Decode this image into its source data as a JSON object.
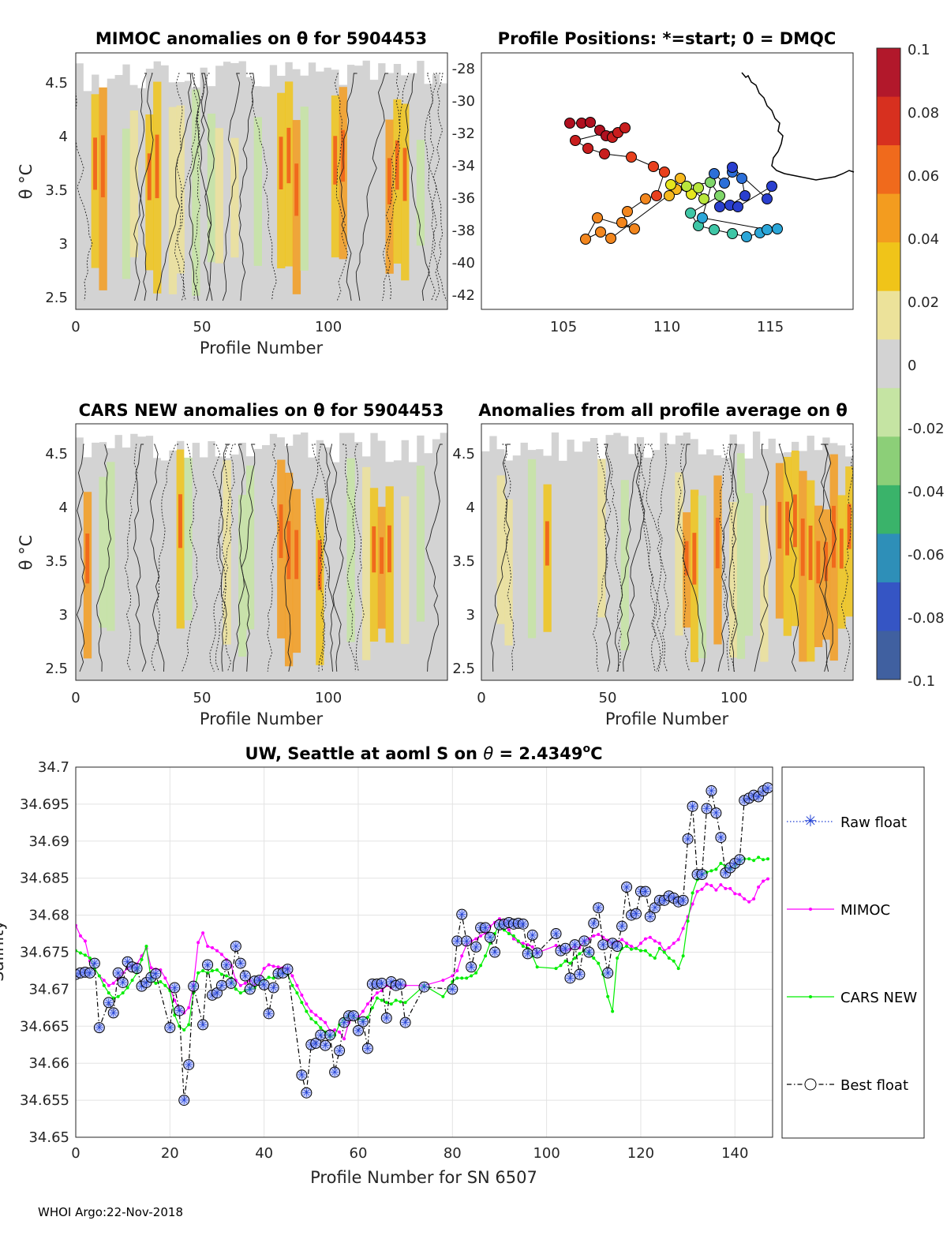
{
  "panels": {
    "mimoc": {
      "title": "MIMOC anomalies on θ  for 5904453",
      "xlabel": "Profile Number",
      "ylabel": "θ °C",
      "xticks": [
        "0",
        "50",
        "100"
      ],
      "yticks": [
        "2.5",
        "3",
        "3.5",
        "4",
        "4.5"
      ]
    },
    "positions": {
      "title": "Profile Positions: *=start; 0 = DMQC",
      "xticks": [
        "105",
        "110",
        "115"
      ],
      "yticks": [
        "-28",
        "-30",
        "-32",
        "-34",
        "-36",
        "-38",
        "-40",
        "-42"
      ]
    },
    "cars": {
      "title": "CARS NEW anomalies on θ for 5904453",
      "xlabel": "Profile Number",
      "ylabel": "θ °C",
      "xticks": [
        "0",
        "50",
        "100"
      ],
      "yticks": [
        "2.5",
        "3",
        "3.5",
        "4",
        "4.5"
      ]
    },
    "allavg": {
      "title": "Anomalies from all profile average on θ",
      "xlabel": "Profile Number",
      "xticks": [
        "0",
        "50",
        "100"
      ],
      "yticks": [
        "2.5",
        "3",
        "3.5",
        "4",
        "4.5"
      ]
    }
  },
  "colorbar": {
    "ticks": [
      "0.1",
      "0.08",
      "0.06",
      "0.04",
      "0.02",
      "0",
      "-0.02",
      "-0.04",
      "-0.06",
      "-0.08",
      "-0.1"
    ],
    "colors": [
      "#b2182b",
      "#d7301f",
      "#f06a1c",
      "#f39c1f",
      "#f0c419",
      "#ece29a",
      "#d3d3d3",
      "#c5e4a3",
      "#8ccf78",
      "#3ab36a",
      "#2e8fb8",
      "#3555c4",
      "#4060a0"
    ]
  },
  "footer": "WHOI Argo:22-Nov-2018",
  "chart_data": {
    "type": "line",
    "title_prefix": "UW, Seattle at aoml S on ",
    "title_theta": "θ",
    "title_eq": " = 2.4349",
    "title_sup": "o",
    "title_unit": "C",
    "xlabel": "Profile Number for SN 6507",
    "ylabel": "Salinity",
    "xlim": [
      0,
      148
    ],
    "ylim": [
      34.65,
      34.7
    ],
    "xticks": [
      "0",
      "20",
      "40",
      "60",
      "80",
      "100",
      "120",
      "140"
    ],
    "yticks": [
      "34.65",
      "34.655",
      "34.66",
      "34.665",
      "34.67",
      "34.675",
      "34.68",
      "34.685",
      "34.69",
      "34.695",
      "34.7"
    ],
    "grid": true,
    "legend_position": "outside-right",
    "series": [
      {
        "name": "Raw float",
        "color": "#1f3fd4"
      },
      {
        "name": "MIMOC",
        "color": "#ff00ff",
        "x": [
          0,
          1,
          2,
          3,
          4,
          5,
          6,
          7,
          8,
          9,
          10,
          11,
          12,
          13,
          14,
          15,
          16,
          17,
          18,
          19,
          20,
          21,
          22,
          23,
          24,
          25,
          26,
          27,
          28,
          29,
          30,
          31,
          32,
          33,
          34,
          35,
          36,
          37,
          38,
          39,
          40,
          41,
          42,
          43,
          44,
          45,
          46,
          47,
          48,
          49,
          50,
          51,
          52,
          53,
          54,
          55,
          56,
          57,
          58,
          59,
          60,
          61,
          62,
          63,
          64,
          65,
          66,
          67,
          68,
          69,
          70,
          74,
          78,
          80,
          81,
          82,
          83,
          84,
          85,
          86,
          87,
          88,
          89,
          90,
          91,
          92,
          93,
          94,
          95,
          96,
          97,
          98,
          102,
          103,
          104,
          105,
          106,
          107,
          108,
          109,
          110,
          111,
          112,
          113,
          114,
          115,
          116,
          117,
          118,
          119,
          120,
          121,
          122,
          123,
          124,
          125,
          126,
          127,
          128,
          129,
          130,
          131,
          132,
          133,
          134,
          135,
          136,
          137,
          138,
          139,
          140,
          141,
          142,
          143,
          144,
          145,
          146,
          147
        ],
        "y": [
          34.6786,
          34.6772,
          34.6765,
          34.6738,
          34.6728,
          34.6718,
          34.6712,
          34.6705,
          34.6708,
          34.6715,
          34.6722,
          34.6728,
          34.6731,
          34.6734,
          34.6745,
          34.6755,
          34.6729,
          34.6727,
          34.6726,
          34.6715,
          34.6702,
          34.6685,
          34.6672,
          34.6668,
          34.6675,
          34.6706,
          34.6763,
          34.6776,
          34.6758,
          34.6756,
          34.6752,
          34.6747,
          34.674,
          34.6732,
          34.6712,
          34.6705,
          34.6708,
          34.6712,
          34.6705,
          34.6715,
          34.6728,
          34.6733,
          34.6731,
          34.673,
          34.6729,
          34.6728,
          34.6718,
          34.6705,
          34.6692,
          34.668,
          34.667,
          34.6665,
          34.666,
          34.6655,
          34.6644,
          34.6645,
          34.6642,
          34.6633,
          34.6655,
          34.6661,
          34.6662,
          34.667,
          34.668,
          34.6688,
          34.6695,
          34.6698,
          34.6705,
          34.6702,
          34.6708,
          34.6706,
          34.6705,
          34.6705,
          34.6712,
          34.6718,
          34.6725,
          34.6745,
          34.676,
          34.6765,
          34.6768,
          34.6772,
          34.6776,
          34.6785,
          34.679,
          34.6795,
          34.6792,
          34.678,
          34.6768,
          34.6764,
          34.6762,
          34.676,
          34.6757,
          34.6749,
          34.6759,
          34.6755,
          34.6752,
          34.6754,
          34.6758,
          34.6756,
          34.6765,
          34.6768,
          34.6772,
          34.6774,
          34.677,
          34.6766,
          34.6761,
          34.6764,
          34.6767,
          34.6762,
          34.6758,
          34.6755,
          34.6762,
          34.6768,
          34.677,
          34.6765,
          34.6762,
          34.6752,
          34.6756,
          34.6762,
          34.6767,
          34.6782,
          34.6798,
          34.6815,
          34.6832,
          34.6835,
          34.6842,
          34.684,
          34.6834,
          34.6841,
          34.6836,
          34.6836,
          34.6829,
          34.6828,
          34.6822,
          34.6818,
          34.6822,
          34.6838,
          34.6846,
          34.6849
        ]
      },
      {
        "name": "CARS NEW",
        "color": "#00ee00",
        "x": [
          0,
          1,
          2,
          3,
          4,
          5,
          6,
          7,
          8,
          9,
          10,
          11,
          12,
          13,
          14,
          15,
          16,
          17,
          18,
          19,
          20,
          21,
          22,
          23,
          24,
          25,
          26,
          27,
          28,
          29,
          30,
          31,
          32,
          33,
          34,
          35,
          36,
          37,
          38,
          39,
          40,
          41,
          42,
          43,
          44,
          45,
          46,
          47,
          48,
          49,
          50,
          51,
          52,
          53,
          54,
          55,
          56,
          57,
          58,
          59,
          60,
          61,
          62,
          63,
          64,
          65,
          66,
          67,
          68,
          69,
          70,
          74,
          78,
          80,
          81,
          82,
          83,
          84,
          85,
          86,
          87,
          88,
          89,
          90,
          91,
          92,
          93,
          94,
          95,
          96,
          97,
          98,
          102,
          103,
          104,
          105,
          106,
          107,
          108,
          109,
          110,
          111,
          112,
          113,
          114,
          115,
          116,
          117,
          118,
          119,
          120,
          121,
          122,
          123,
          124,
          125,
          126,
          127,
          128,
          129,
          130,
          131,
          132,
          133,
          134,
          135,
          136,
          137,
          138,
          139,
          140,
          141,
          142,
          143,
          144,
          145,
          146,
          147
        ],
        "y": [
          34.6752,
          34.6749,
          34.6746,
          34.6742,
          34.6728,
          34.6718,
          34.6705,
          34.6695,
          34.6688,
          34.669,
          34.6695,
          34.6702,
          34.6712,
          34.6722,
          34.674,
          34.6758,
          34.6712,
          34.6708,
          34.671,
          34.6705,
          34.6698,
          34.6665,
          34.665,
          34.6645,
          34.6652,
          34.6695,
          34.6722,
          34.6725,
          34.6722,
          34.6725,
          34.6726,
          34.672,
          34.6718,
          34.6715,
          34.67,
          34.6695,
          34.6698,
          34.67,
          34.6702,
          34.6708,
          34.6712,
          34.6716,
          34.6715,
          34.6718,
          34.6722,
          34.672,
          34.6705,
          34.6695,
          34.6682,
          34.667,
          34.666,
          34.6655,
          34.6648,
          34.6642,
          34.6635,
          34.6638,
          34.6652,
          34.666,
          34.6665,
          34.6662,
          34.666,
          34.6658,
          34.6662,
          34.6675,
          34.6688,
          34.6685,
          34.6682,
          34.668,
          34.6685,
          34.6683,
          34.6682,
          34.6705,
          34.669,
          34.671,
          34.6715,
          34.6715,
          34.6715,
          34.6718,
          34.6722,
          34.6732,
          34.6745,
          34.6762,
          34.6775,
          34.6788,
          34.678,
          34.6775,
          34.6772,
          34.6765,
          34.6758,
          34.6755,
          34.6745,
          34.673,
          34.6728,
          34.6732,
          34.6738,
          34.6735,
          34.6742,
          34.6748,
          34.6752,
          34.6748,
          34.6742,
          34.6735,
          34.672,
          34.669,
          34.667,
          34.6742,
          34.6755,
          34.6758,
          34.6754,
          34.6755,
          34.6752,
          34.6752,
          34.6746,
          34.6742,
          34.6755,
          34.675,
          34.6742,
          34.6738,
          34.6728,
          34.6745,
          34.6792,
          34.683,
          34.6848,
          34.6855,
          34.6858,
          34.686,
          34.6862,
          34.687,
          34.6866,
          34.6862,
          34.6866,
          34.6872,
          34.6876,
          34.6876,
          34.6874,
          34.6878,
          34.6875,
          34.6876
        ]
      },
      {
        "name": "Best float",
        "color": "#000000",
        "x": [
          0,
          1,
          2,
          3,
          4,
          5,
          7,
          8,
          9,
          10,
          11,
          12,
          13,
          14,
          15,
          16,
          17,
          20,
          21,
          22,
          23,
          24,
          25,
          27,
          28,
          29,
          30,
          31,
          32,
          33,
          34,
          35,
          36,
          37,
          38,
          39,
          40,
          41,
          42,
          43,
          44,
          45,
          48,
          49,
          50,
          51,
          52,
          53,
          54,
          55,
          56,
          57,
          58,
          59,
          60,
          61,
          62,
          63,
          64,
          65,
          66,
          67,
          68,
          69,
          70,
          74,
          80,
          81,
          82,
          83,
          84,
          85,
          86,
          87,
          88,
          89,
          90,
          91,
          92,
          93,
          94,
          95,
          96,
          97,
          98,
          102,
          103,
          104,
          105,
          106,
          107,
          108,
          109,
          110,
          111,
          112,
          113,
          114,
          115,
          116,
          117,
          118,
          119,
          120,
          121,
          122,
          123,
          124,
          125,
          126,
          127,
          128,
          129,
          130,
          131,
          132,
          133,
          134,
          135,
          136,
          137,
          138,
          139,
          140,
          141,
          142,
          143,
          144,
          145,
          146,
          147
        ],
        "y": [
          34.672,
          34.6722,
          34.6723,
          34.6722,
          34.6735,
          34.6648,
          34.6682,
          34.6668,
          34.6722,
          34.6709,
          34.6737,
          34.673,
          34.6728,
          34.6704,
          34.6709,
          34.6716,
          34.6721,
          34.6648,
          34.6702,
          34.6671,
          34.655,
          34.6598,
          34.6704,
          34.6652,
          34.6733,
          34.6692,
          34.6695,
          34.6705,
          34.6733,
          34.6708,
          34.6758,
          34.6735,
          34.6718,
          34.67,
          34.6711,
          34.6712,
          34.6706,
          34.6667,
          34.6702,
          34.6721,
          34.6722,
          34.6727,
          34.6584,
          34.656,
          34.6625,
          34.6627,
          34.6638,
          34.6624,
          34.6638,
          34.6588,
          34.6617,
          34.6655,
          34.6664,
          34.6664,
          34.6644,
          34.6656,
          34.662,
          34.6707,
          34.6707,
          34.6708,
          34.6661,
          34.671,
          34.6705,
          34.6707,
          34.6655,
          34.6703,
          34.67,
          34.6765,
          34.6801,
          34.6765,
          34.673,
          34.6757,
          34.6783,
          34.6783,
          34.677,
          34.675,
          34.6787,
          34.6788,
          34.679,
          34.6788,
          34.6789,
          34.6788,
          34.6748,
          34.6773,
          34.6749,
          34.6775,
          34.6752,
          34.6755,
          34.6715,
          34.676,
          34.672,
          34.6765,
          34.675,
          34.6789,
          34.681,
          34.676,
          34.6722,
          34.6762,
          34.6758,
          34.6785,
          34.6838,
          34.68,
          34.6802,
          34.6832,
          34.6832,
          34.6798,
          34.681,
          34.682,
          34.682,
          34.6826,
          34.6823,
          34.6818,
          34.682,
          34.6903,
          34.6947,
          34.6855,
          34.6855,
          34.6944,
          34.6968,
          34.6938,
          34.6905,
          34.6857,
          34.6864,
          34.687,
          34.6875,
          34.6955,
          34.6958,
          34.6962,
          34.696,
          34.6968,
          34.6972
        ]
      }
    ]
  }
}
